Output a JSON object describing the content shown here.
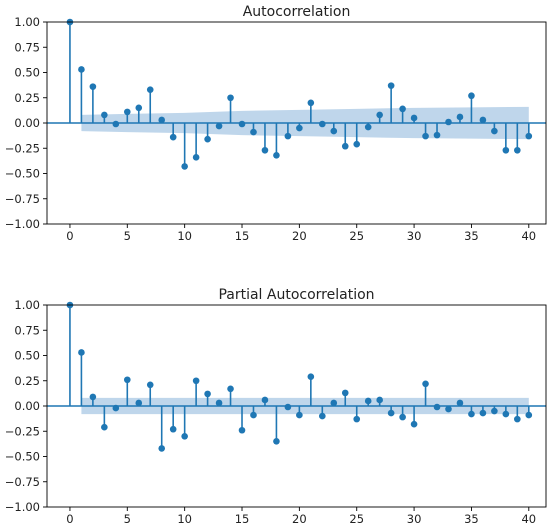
{
  "chart_data": [
    {
      "type": "stem",
      "title": "Autocorrelation",
      "xlabel": "",
      "ylabel": "",
      "xlim": [
        -2,
        41.5
      ],
      "ylim": [
        -1.0,
        1.0
      ],
      "xticks": [
        0,
        5,
        10,
        15,
        20,
        25,
        30,
        35,
        40
      ],
      "xtick_labels": [
        "0",
        "5",
        "10",
        "15",
        "20",
        "25",
        "30",
        "35",
        "40"
      ],
      "yticks": [
        1.0,
        0.75,
        0.5,
        0.25,
        0.0,
        -0.25,
        -0.5,
        -0.75,
        -1.0
      ],
      "ytick_labels": [
        "1.00",
        "0.75",
        "0.50",
        "0.25",
        "0.00",
        "−0.25",
        "−0.50",
        "−0.75",
        "−1.00"
      ],
      "grid": false,
      "lags": [
        0,
        1,
        2,
        3,
        4,
        5,
        6,
        7,
        8,
        9,
        10,
        11,
        12,
        13,
        14,
        15,
        16,
        17,
        18,
        19,
        20,
        21,
        22,
        23,
        24,
        25,
        26,
        27,
        28,
        29,
        30,
        31,
        32,
        33,
        34,
        35,
        36,
        37,
        38,
        39,
        40
      ],
      "values": [
        1.0,
        0.53,
        0.36,
        0.08,
        -0.01,
        0.11,
        0.15,
        0.33,
        0.03,
        -0.14,
        -0.43,
        -0.34,
        -0.16,
        -0.03,
        0.25,
        -0.01,
        -0.09,
        -0.27,
        -0.32,
        -0.13,
        -0.05,
        0.2,
        -0.01,
        -0.08,
        -0.23,
        -0.21,
        -0.04,
        0.08,
        0.37,
        0.14,
        0.05,
        -0.13,
        -0.12,
        0.01,
        0.06,
        0.27,
        0.03,
        -0.08,
        -0.27,
        -0.27,
        -0.13
      ],
      "confidence_band": {
        "lags": [
          1,
          5,
          10,
          15,
          20,
          25,
          30,
          35,
          40
        ],
        "upper": [
          0.08,
          0.09,
          0.1,
          0.12,
          0.13,
          0.14,
          0.15,
          0.155,
          0.16
        ],
        "lower": [
          -0.08,
          -0.09,
          -0.1,
          -0.12,
          -0.13,
          -0.14,
          -0.15,
          -0.155,
          -0.16
        ]
      },
      "colors": {
        "stem": "#1f77b4",
        "band": "#aac8e4",
        "baseline": "#1f77b4"
      }
    },
    {
      "type": "stem",
      "title": "Partial Autocorrelation",
      "xlabel": "",
      "ylabel": "",
      "xlim": [
        -2,
        41.5
      ],
      "ylim": [
        -1.0,
        1.0
      ],
      "xticks": [
        0,
        5,
        10,
        15,
        20,
        25,
        30,
        35,
        40
      ],
      "xtick_labels": [
        "0",
        "5",
        "10",
        "15",
        "20",
        "25",
        "30",
        "35",
        "40"
      ],
      "yticks": [
        1.0,
        0.75,
        0.5,
        0.25,
        0.0,
        -0.25,
        -0.5,
        -0.75,
        -1.0
      ],
      "ytick_labels": [
        "1.00",
        "0.75",
        "0.50",
        "0.25",
        "0.00",
        "−0.25",
        "−0.50",
        "−0.75",
        "−1.00"
      ],
      "grid": false,
      "lags": [
        0,
        1,
        2,
        3,
        4,
        5,
        6,
        7,
        8,
        9,
        10,
        11,
        12,
        13,
        14,
        15,
        16,
        17,
        18,
        19,
        20,
        21,
        22,
        23,
        24,
        25,
        26,
        27,
        28,
        29,
        30,
        31,
        32,
        33,
        34,
        35,
        36,
        37,
        38,
        39,
        40
      ],
      "values": [
        1.0,
        0.53,
        0.09,
        -0.21,
        -0.02,
        0.26,
        0.03,
        0.21,
        -0.42,
        -0.23,
        -0.3,
        0.25,
        0.12,
        0.03,
        0.17,
        -0.24,
        -0.09,
        0.06,
        -0.35,
        -0.01,
        -0.09,
        0.29,
        -0.1,
        0.03,
        0.13,
        -0.13,
        0.05,
        0.06,
        -0.07,
        -0.11,
        -0.18,
        0.22,
        -0.01,
        -0.03,
        0.03,
        -0.08,
        -0.07,
        -0.05,
        -0.08,
        -0.13,
        -0.09
      ],
      "confidence_band": {
        "lags": [
          1,
          40
        ],
        "upper": [
          0.08,
          0.08
        ],
        "lower": [
          -0.08,
          -0.08
        ]
      },
      "colors": {
        "stem": "#1f77b4",
        "band": "#aac8e4",
        "baseline": "#1f77b4"
      }
    }
  ]
}
